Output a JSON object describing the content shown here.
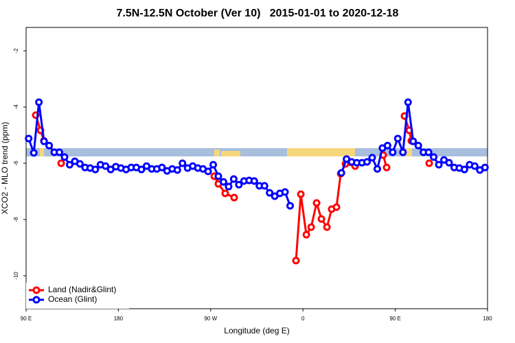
{
  "chart_data": {
    "type": "line",
    "title": "7.5N-12.5N October (Ver 10)   2015-01-01 to 2020-12-18",
    "x_label": "Longitude (deg E)",
    "y_label": "XCO2 - MLO trend (ppm)",
    "xlim": [
      90,
      540
    ],
    "ylim": [
      -11.17,
      -1.17
    ],
    "xticks": [
      {
        "value": 90,
        "label": "90 E"
      },
      {
        "value": 180,
        "label": "180"
      },
      {
        "value": 270,
        "label": "90 W"
      },
      {
        "value": 360,
        "label": "0"
      },
      {
        "value": 450,
        "label": "90 E"
      },
      {
        "value": 540,
        "label": "180"
      }
    ],
    "yticks": [
      -10,
      -8,
      -6,
      -4,
      -2
    ],
    "legend": "bottom-left",
    "series": [
      {
        "name": "Land (Nadir&Glint)",
        "color": "#ff0000",
        "x": [
          99.4,
          104.1,
          107.4,
          null,
          124.2,
          null,
          273.5,
          277.5,
          284.2,
          292.9,
          null,
          353.2,
          357.9,
          363.3,
          368,
          373.3,
          378,
          383.4,
          388,
          392.7,
          396.8,
          401.5,
          410.9,
          null,
          438.2,
          441.6,
          null,
          459,
          463.7,
          465.7,
          null,
          483.1
        ],
        "values": [
          -4.29,
          -4.83,
          -5.2,
          null,
          -6.0,
          null,
          -6.46,
          -6.73,
          -7.07,
          -7.22,
          null,
          -9.46,
          -7.1,
          -8.54,
          -8.27,
          -7.41,
          -7.98,
          -8.27,
          -7.63,
          -7.56,
          -6.37,
          -6.02,
          -6.1,
          null,
          -5.71,
          -6.15,
          null,
          -4.32,
          -4.83,
          -5.2,
          null,
          -6.0
        ]
      },
      {
        "name": "Ocean (Glint)",
        "color": "#0000ff",
        "x": [
          92.5,
          97.5,
          102.5,
          107.5,
          112.5,
          117.5,
          122.5,
          127.5,
          132.5,
          137.5,
          142.5,
          147.5,
          152.5,
          157.5,
          162.5,
          167.5,
          172.5,
          177.5,
          182.5,
          187.5,
          192.5,
          197.5,
          202.5,
          207.5,
          212.5,
          217.5,
          222.5,
          227.5,
          232.5,
          237.5,
          242.5,
          247.5,
          252.5,
          257.5,
          262.5,
          267.5,
          272.5,
          277.5,
          282.5,
          287.5,
          292.5,
          297.5,
          302.5,
          307.5,
          312.5,
          317.5,
          322.5,
          327.5,
          332.5,
          337.5,
          342.5,
          347.5,
          352.5,
          357.5,
          362.5,
          367.5,
          372.5,
          377.5,
          382.5,
          387.5,
          392.5,
          397.5,
          402.5,
          407.5,
          412.5,
          417.5,
          422.5,
          427.5,
          432.5,
          437.5,
          442.5,
          447.5,
          452.5,
          457.5,
          462.5,
          467.5,
          472.5,
          477.5,
          482.5,
          487.5,
          492.5,
          497.5,
          502.5,
          507.5,
          512.5,
          517.5,
          522.5,
          527.5,
          532.5,
          537.5
        ],
        "values": [
          -5.12,
          -5.63,
          -3.83,
          -5.22,
          -5.37,
          -5.61,
          -5.61,
          -5.78,
          -6.05,
          -5.93,
          -6.02,
          -6.15,
          -6.17,
          -6.22,
          -6.05,
          -6.1,
          -6.22,
          -6.12,
          -6.17,
          -6.22,
          -6.15,
          -6.15,
          -6.22,
          -6.1,
          -6.2,
          -6.2,
          -6.15,
          -6.27,
          -6.2,
          -6.24,
          -6.0,
          -6.17,
          -6.1,
          -6.17,
          -6.2,
          -6.29,
          -6.05,
          -6.46,
          -6.66,
          -6.83,
          -6.56,
          -6.76,
          -6.63,
          -6.61,
          -6.63,
          -6.8,
          -6.8,
          -7.05,
          -7.17,
          -7.07,
          -7.02,
          -7.51,
          null,
          null,
          null,
          null,
          null,
          null,
          null,
          null,
          null,
          -6.34,
          -5.85,
          -5.95,
          -5.98,
          -5.98,
          -5.95,
          -5.8,
          -6.2,
          -5.46,
          -5.37,
          -5.61,
          -5.12,
          -5.61,
          -3.83,
          -5.22,
          -5.37,
          -5.61,
          -5.61,
          -5.78,
          -6.05,
          -5.88,
          -5.98,
          -6.15,
          -6.17,
          -6.22,
          -6.05,
          -6.1,
          -6.24,
          -6.15
        ]
      }
    ]
  }
}
